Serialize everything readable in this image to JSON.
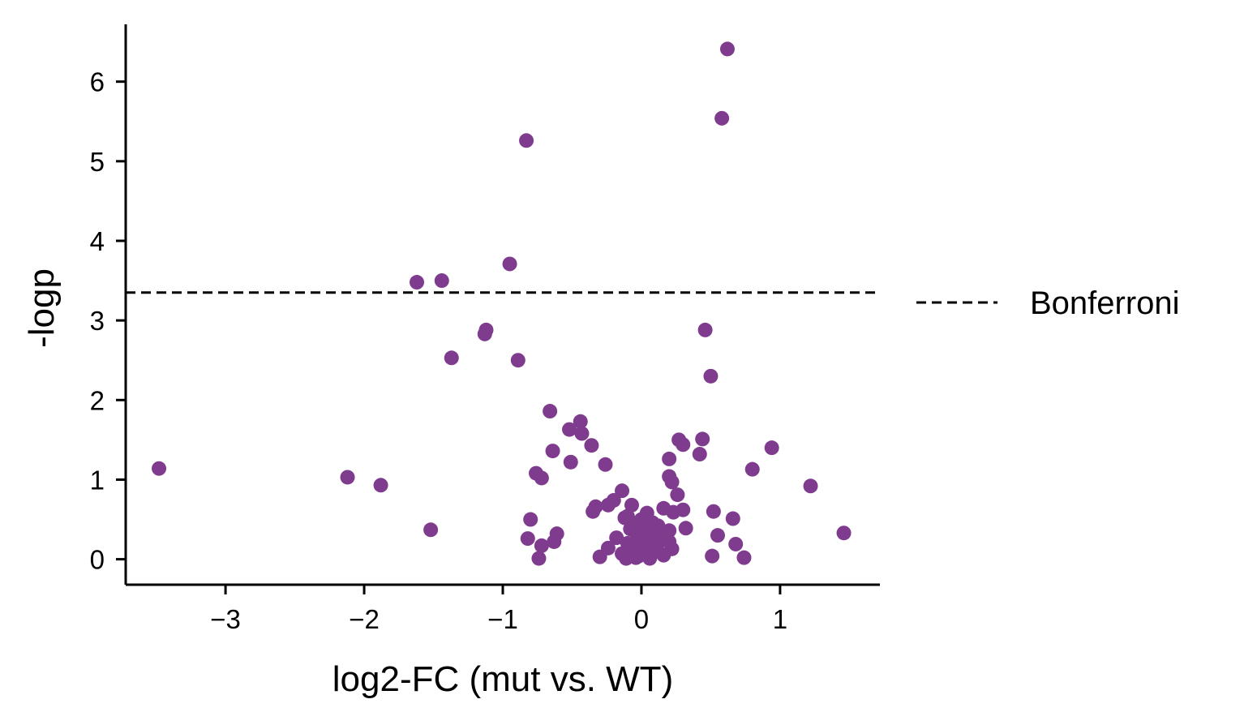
{
  "chart_data": {
    "type": "scatter",
    "title": "",
    "xlabel": "log2-FC (mut vs. WT)",
    "ylabel": "-logp",
    "xlim": [
      -3.72,
      1.72
    ],
    "ylim": [
      -0.32,
      6.72
    ],
    "x_ticks": [
      {
        "value": -3,
        "label": "−3"
      },
      {
        "value": -2,
        "label": "−2"
      },
      {
        "value": -1,
        "label": "−1"
      },
      {
        "value": 0,
        "label": "0"
      },
      {
        "value": 1,
        "label": "1"
      }
    ],
    "y_ticks": [
      {
        "value": 0,
        "label": "0"
      },
      {
        "value": 1,
        "label": "1"
      },
      {
        "value": 2,
        "label": "2"
      },
      {
        "value": 3,
        "label": "3"
      },
      {
        "value": 4,
        "label": "4"
      },
      {
        "value": 5,
        "label": "5"
      },
      {
        "value": 6,
        "label": "6"
      }
    ],
    "grid": false,
    "point_color": "#7f3b8e",
    "threshold": {
      "value": 3.35,
      "label": "Bonferroni",
      "style": "dashed",
      "color": "#000000"
    },
    "legend": {
      "position": "right",
      "entries": [
        "Bonferroni"
      ]
    },
    "points": [
      {
        "x": 0.62,
        "y": 6.41
      },
      {
        "x": 0.58,
        "y": 5.54
      },
      {
        "x": -0.83,
        "y": 5.26
      },
      {
        "x": -0.95,
        "y": 3.71
      },
      {
        "x": -1.44,
        "y": 3.5
      },
      {
        "x": -1.62,
        "y": 3.48
      },
      {
        "x": -1.12,
        "y": 2.88
      },
      {
        "x": -1.13,
        "y": 2.83
      },
      {
        "x": 0.46,
        "y": 2.88
      },
      {
        "x": -1.37,
        "y": 2.53
      },
      {
        "x": -0.89,
        "y": 2.5
      },
      {
        "x": 0.5,
        "y": 2.3
      },
      {
        "x": -0.66,
        "y": 1.86
      },
      {
        "x": -0.44,
        "y": 1.73
      },
      {
        "x": -0.52,
        "y": 1.63
      },
      {
        "x": -0.43,
        "y": 1.58
      },
      {
        "x": -0.36,
        "y": 1.43
      },
      {
        "x": -0.64,
        "y": 1.36
      },
      {
        "x": -0.51,
        "y": 1.22
      },
      {
        "x": -0.26,
        "y": 1.19
      },
      {
        "x": 0.27,
        "y": 1.5
      },
      {
        "x": 0.3,
        "y": 1.44
      },
      {
        "x": 0.44,
        "y": 1.51
      },
      {
        "x": 0.42,
        "y": 1.32
      },
      {
        "x": 0.2,
        "y": 1.26
      },
      {
        "x": 0.94,
        "y": 1.4
      },
      {
        "x": 0.8,
        "y": 1.13
      },
      {
        "x": -3.48,
        "y": 1.14
      },
      {
        "x": -2.12,
        "y": 1.03
      },
      {
        "x": -1.88,
        "y": 0.93
      },
      {
        "x": -0.76,
        "y": 1.08
      },
      {
        "x": -0.72,
        "y": 1.02
      },
      {
        "x": 0.2,
        "y": 1.04
      },
      {
        "x": 0.22,
        "y": 0.97
      },
      {
        "x": 1.22,
        "y": 0.92
      },
      {
        "x": -0.14,
        "y": 0.86
      },
      {
        "x": 0.26,
        "y": 0.81
      },
      {
        "x": -0.2,
        "y": 0.74
      },
      {
        "x": -0.07,
        "y": 0.68
      },
      {
        "x": -0.24,
        "y": 0.68
      },
      {
        "x": 0.16,
        "y": 0.64
      },
      {
        "x": 0.3,
        "y": 0.62
      },
      {
        "x": -0.33,
        "y": 0.66
      },
      {
        "x": -0.35,
        "y": 0.6
      },
      {
        "x": 0.23,
        "y": 0.59
      },
      {
        "x": 0.52,
        "y": 0.6
      },
      {
        "x": 0.66,
        "y": 0.51
      },
      {
        "x": -0.8,
        "y": 0.5
      },
      {
        "x": 0.04,
        "y": 0.58
      },
      {
        "x": -0.1,
        "y": 0.54
      },
      {
        "x": -0.12,
        "y": 0.52
      },
      {
        "x": 0.0,
        "y": 0.5
      },
      {
        "x": 0.08,
        "y": 0.46
      },
      {
        "x": -0.05,
        "y": 0.44
      },
      {
        "x": 0.12,
        "y": 0.42
      },
      {
        "x": 0.32,
        "y": 0.39
      },
      {
        "x": 0.2,
        "y": 0.36
      },
      {
        "x": -1.52,
        "y": 0.37
      },
      {
        "x": -0.61,
        "y": 0.32
      },
      {
        "x": -0.82,
        "y": 0.26
      },
      {
        "x": -0.63,
        "y": 0.22
      },
      {
        "x": -0.72,
        "y": 0.17
      },
      {
        "x": -0.08,
        "y": 0.38
      },
      {
        "x": 0.02,
        "y": 0.34
      },
      {
        "x": 0.1,
        "y": 0.33
      },
      {
        "x": -0.18,
        "y": 0.27
      },
      {
        "x": -0.03,
        "y": 0.28
      },
      {
        "x": 0.06,
        "y": 0.26
      },
      {
        "x": 0.14,
        "y": 0.24
      },
      {
        "x": 0.2,
        "y": 0.22
      },
      {
        "x": -0.1,
        "y": 0.2
      },
      {
        "x": 0.0,
        "y": 0.18
      },
      {
        "x": 0.08,
        "y": 0.16
      },
      {
        "x": -0.24,
        "y": 0.14
      },
      {
        "x": 0.22,
        "y": 0.13
      },
      {
        "x": -0.06,
        "y": 0.11
      },
      {
        "x": 0.12,
        "y": 0.1
      },
      {
        "x": 0.04,
        "y": 0.08
      },
      {
        "x": -0.14,
        "y": 0.07
      },
      {
        "x": 0.16,
        "y": 0.05
      },
      {
        "x": -0.02,
        "y": 0.04
      },
      {
        "x": 0.55,
        "y": 0.3
      },
      {
        "x": 0.68,
        "y": 0.19
      },
      {
        "x": 1.46,
        "y": 0.33
      },
      {
        "x": -0.74,
        "y": 0.01
      },
      {
        "x": -0.3,
        "y": 0.03
      },
      {
        "x": -0.11,
        "y": 0.01
      },
      {
        "x": -0.04,
        "y": 0.02
      },
      {
        "x": 0.06,
        "y": 0.01
      },
      {
        "x": 0.51,
        "y": 0.04
      },
      {
        "x": 0.74,
        "y": 0.02
      }
    ]
  }
}
